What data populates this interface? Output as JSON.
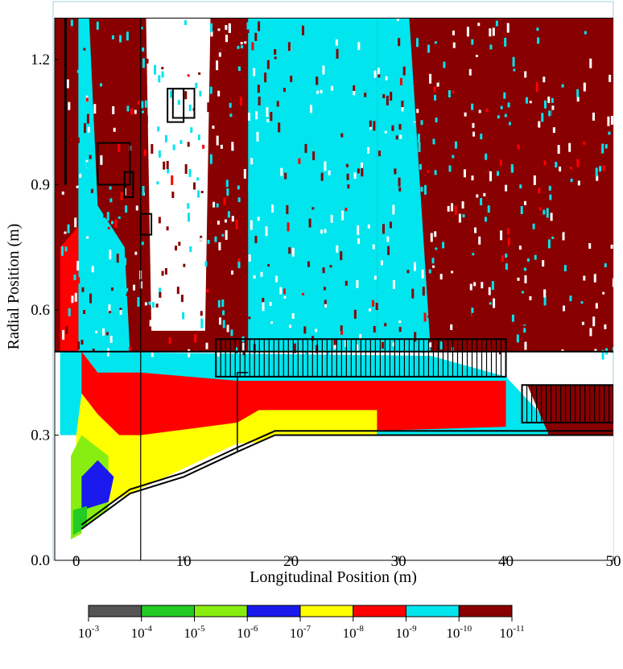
{
  "chart_data": {
    "type": "heatmap",
    "title": "",
    "xlabel": "Longitudinal Position (m)",
    "ylabel": "Radial Position (m)",
    "xlim": [
      -2,
      50
    ],
    "ylim": [
      0,
      1.3
    ],
    "x_ticks": [
      {
        "value": 0,
        "label": "0"
      },
      {
        "value": 10,
        "label": "10"
      },
      {
        "value": 20,
        "label": "20"
      },
      {
        "value": 30,
        "label": "30"
      },
      {
        "value": 40,
        "label": "40"
      },
      {
        "value": 50,
        "label": "50"
      }
    ],
    "y_ticks": [
      {
        "value": 0,
        "label": "0.0"
      },
      {
        "value": 0.3,
        "label": "0.3"
      },
      {
        "value": 0.6,
        "label": "0.6"
      },
      {
        "value": 0.9,
        "label": "0.9"
      },
      {
        "value": 1.2,
        "label": "1.2"
      }
    ],
    "grid": false,
    "colorbar": {
      "placement": "bottom",
      "bins": [
        {
          "color": "#555555",
          "from": "10^-3",
          "to": "10^-4"
        },
        {
          "color": "#22cc22",
          "from": "10^-4",
          "to": "10^-5"
        },
        {
          "color": "#88ee11",
          "from": "10^-5",
          "to": "10^-6"
        },
        {
          "color": "#1a1aee",
          "from": "10^-6",
          "to": "10^-7"
        },
        {
          "color": "#ffff00",
          "from": "10^-7",
          "to": "10^-8"
        },
        {
          "color": "#ff0000",
          "from": "10^-8",
          "to": "10^-9"
        },
        {
          "color": "#00e5ee",
          "from": "10^-9",
          "to": "10^-10"
        },
        {
          "color": "#880000",
          "from": "10^-10",
          "to": "10^-11"
        }
      ],
      "labels": [
        {
          "base": "10",
          "exp": "-3"
        },
        {
          "base": "10",
          "exp": "-4"
        },
        {
          "base": "10",
          "exp": "-5"
        },
        {
          "base": "10",
          "exp": "-6"
        },
        {
          "base": "10",
          "exp": "-7"
        },
        {
          "base": "10",
          "exp": "-8"
        },
        {
          "base": "10",
          "exp": "-9"
        },
        {
          "base": "10",
          "exp": "-10"
        },
        {
          "base": "10",
          "exp": "-11"
        }
      ]
    },
    "regions": [
      {
        "name": "background-dark-red",
        "color": "#880000",
        "polygon": [
          [
            -2,
            0.5
          ],
          [
            50,
            0.5
          ],
          [
            50,
            1.3
          ],
          [
            -2,
            1.3
          ]
        ]
      },
      {
        "name": "cyan-upper-core",
        "color": "#00e5ee",
        "polygon": [
          [
            16,
            0.5
          ],
          [
            28,
            0.5
          ],
          [
            28,
            1.3
          ],
          [
            16,
            1.3
          ]
        ]
      },
      {
        "name": "cyan-upper-right-fade",
        "color": "#00e5ee",
        "polygon": [
          [
            28,
            0.5
          ],
          [
            33,
            0.5
          ],
          [
            31,
            1.3
          ],
          [
            28,
            1.3
          ]
        ]
      },
      {
        "name": "cyan-upper-left-column",
        "color": "#00e5ee",
        "polygon": [
          [
            0.2,
            0.5
          ],
          [
            5,
            0.5
          ],
          [
            4.5,
            0.75
          ],
          [
            2,
            0.85
          ],
          [
            1.2,
            1.3
          ],
          [
            0.2,
            1.3
          ]
        ]
      },
      {
        "name": "white-upper-strip",
        "color": "#ffffff",
        "polygon": [
          [
            7,
            0.55
          ],
          [
            12,
            0.55
          ],
          [
            12.5,
            1.3
          ],
          [
            6.5,
            1.3
          ]
        ]
      },
      {
        "name": "red-upper-left",
        "color": "#ff0000",
        "polygon": [
          [
            -1.5,
            0.5
          ],
          [
            0.2,
            0.5
          ],
          [
            0.2,
            0.8
          ],
          [
            -1.5,
            0.75
          ]
        ]
      },
      {
        "name": "cyan-lower-band",
        "color": "#00e5ee",
        "polygon": [
          [
            -1.5,
            0.3
          ],
          [
            44,
            0.3
          ],
          [
            44,
            0.33
          ],
          [
            40,
            0.44
          ],
          [
            33,
            0.49
          ],
          [
            -1.5,
            0.5
          ]
        ]
      },
      {
        "name": "dark-red-lower-right",
        "color": "#880000",
        "polygon": [
          [
            44,
            0.3
          ],
          [
            50,
            0.3
          ],
          [
            50,
            0.42
          ],
          [
            42,
            0.42
          ]
        ]
      },
      {
        "name": "red-lower-band",
        "color": "#ff0000",
        "polygon": [
          [
            0.5,
            0.19
          ],
          [
            15,
            0.3
          ],
          [
            40,
            0.32
          ],
          [
            40,
            0.43
          ],
          [
            15,
            0.43
          ],
          [
            6,
            0.45
          ],
          [
            2,
            0.45
          ],
          [
            0.5,
            0.5
          ]
        ]
      },
      {
        "name": "yellow-lower-band",
        "color": "#ffff00",
        "polygon": [
          [
            0,
            0.1
          ],
          [
            15,
            0.28
          ],
          [
            28,
            0.3
          ],
          [
            28,
            0.36
          ],
          [
            17,
            0.36
          ],
          [
            15,
            0.33
          ],
          [
            6,
            0.3
          ],
          [
            4,
            0.3
          ],
          [
            2,
            0.35
          ],
          [
            0.5,
            0.4
          ],
          [
            0,
            0.3
          ]
        ]
      },
      {
        "name": "lime-lower",
        "color": "#88ee11",
        "polygon": [
          [
            -0.5,
            0.05
          ],
          [
            3,
            0.1
          ],
          [
            3,
            0.25
          ],
          [
            0.5,
            0.3
          ],
          [
            -0.5,
            0.25
          ]
        ]
      },
      {
        "name": "blue-lower",
        "color": "#1a1aee",
        "polygon": [
          [
            0.5,
            0.12
          ],
          [
            3,
            0.14
          ],
          [
            3.5,
            0.2
          ],
          [
            2,
            0.24
          ],
          [
            0.5,
            0.2
          ]
        ]
      },
      {
        "name": "green-lower",
        "color": "#22cc22",
        "polygon": [
          [
            -0.3,
            0.06
          ],
          [
            1,
            0.08
          ],
          [
            1,
            0.13
          ],
          [
            -0.3,
            0.12
          ]
        ]
      },
      {
        "name": "white-beampipe",
        "color": "#ffffff",
        "polygon": [
          [
            0.5,
            0.0
          ],
          [
            0.5,
            0.075
          ],
          [
            5,
            0.16
          ],
          [
            10,
            0.2
          ],
          [
            15,
            0.26
          ],
          [
            18.5,
            0.3
          ],
          [
            50,
            0.3
          ],
          [
            50,
            0
          ],
          [
            0.5,
            0
          ]
        ]
      }
    ]
  }
}
